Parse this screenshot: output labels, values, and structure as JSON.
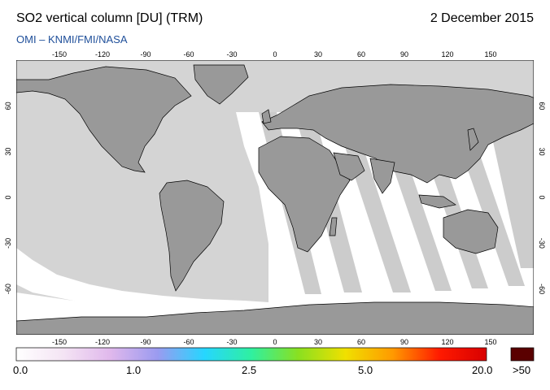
{
  "header": {
    "title": "SO2 vertical column [DU] (TRM)",
    "date": "2 December 2015",
    "subtitle": "OMI  –  KNMI/FMI/NASA"
  },
  "map": {
    "lon_ticks": [
      "-150",
      "-120",
      "-90",
      "-60",
      "-30",
      "0",
      "30",
      "60",
      "90",
      "120",
      "150"
    ],
    "lat_ticks": [
      "60",
      "30",
      "0",
      "-30",
      "-60"
    ],
    "colors": {
      "land": "#999999",
      "no_data": "#d4d4d4",
      "ocean": "#ffffff",
      "coast": "#000000"
    }
  },
  "colorbar": {
    "labels": [
      "0.0",
      "1.0",
      "2.5",
      "5.0",
      "20.0"
    ],
    "over_label": ">50",
    "stops": [
      "#ffffff",
      "#f4e4f4",
      "#e0b8ec",
      "#9b9bf0",
      "#26d6ff",
      "#2ff0a0",
      "#8ae020",
      "#f0e000",
      "#ff9a00",
      "#ff1a00",
      "#d80000"
    ],
    "over_color": "#5a0000"
  }
}
